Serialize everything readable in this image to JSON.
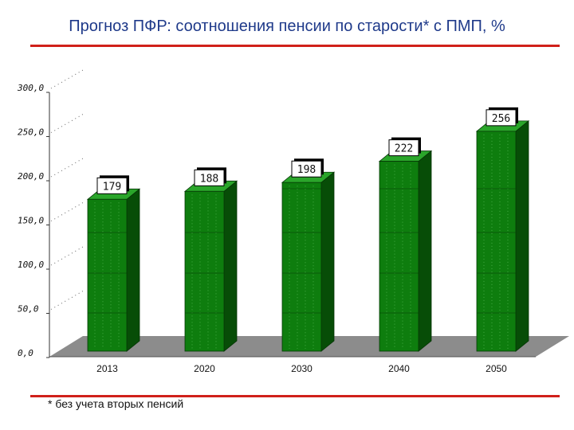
{
  "title": "Прогноз ПФР: соотношения пенсии по старости* с ПМП, %",
  "footnote": "* без учета вторых пенсий",
  "colors": {
    "bar_front": "#0e7d0e",
    "bar_side": "#074d07",
    "bar_top": "#2aa52a",
    "floor": "#8c8c8c",
    "title": "#1f3a8a",
    "rule": "#d0201a"
  },
  "chart_data": {
    "type": "bar",
    "title": "Прогноз ПФР: соотношения пенсии по старости* с ПМП, %",
    "categories": [
      "2013",
      "2020",
      "2030",
      "2040",
      "2050"
    ],
    "values": [
      179,
      188,
      198,
      222,
      256
    ],
    "data_labels": [
      "179",
      "188",
      "198",
      "222",
      "256"
    ],
    "y_ticks": [
      "0,0",
      "50,0",
      "100,0",
      "150,0",
      "200,0",
      "250,0",
      "300,0"
    ],
    "ylim": [
      0,
      300
    ],
    "grid": true,
    "xlabel": "",
    "ylabel": "",
    "style": "3d"
  }
}
